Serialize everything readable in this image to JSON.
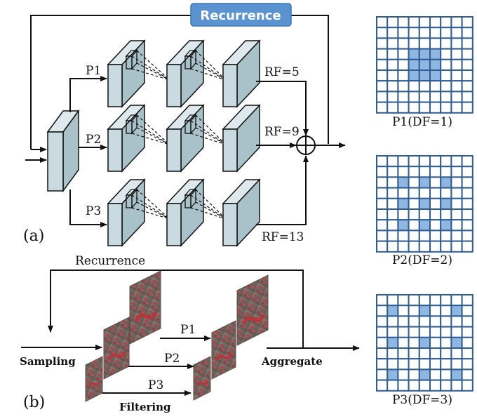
{
  "panel_a": {
    "label": "(a)",
    "recurrence_title": "Recurrence",
    "path_labels": [
      "P1",
      "P2",
      "P3"
    ],
    "receptive_fields": [
      "RF=5",
      "RF=9",
      "RF=13"
    ]
  },
  "panel_b": {
    "label": "(b)",
    "recurrence_label": "Recurrence",
    "sampling_label": "Sampling",
    "filtering_label": "Filtering",
    "aggregate_label": "Aggregate",
    "path_labels": [
      "P1",
      "P2",
      "P3"
    ]
  },
  "grids": [
    {
      "caption": "P1(DF=1)",
      "dilation": 1
    },
    {
      "caption": "P2(DF=2)",
      "dilation": 2
    },
    {
      "caption": "P3(DF=3)",
      "dilation": 3
    }
  ],
  "colors": {
    "block_face": "#c9dbe0",
    "block_side": "#a9c2c9",
    "grid_line": "#2f5d94",
    "grid_cell": "#ffffff",
    "grid_fill": "#8fb7e2",
    "recurrence_box": "#5b93d0",
    "image_red": "#c0303a",
    "image_gray": "#7e6f66"
  }
}
